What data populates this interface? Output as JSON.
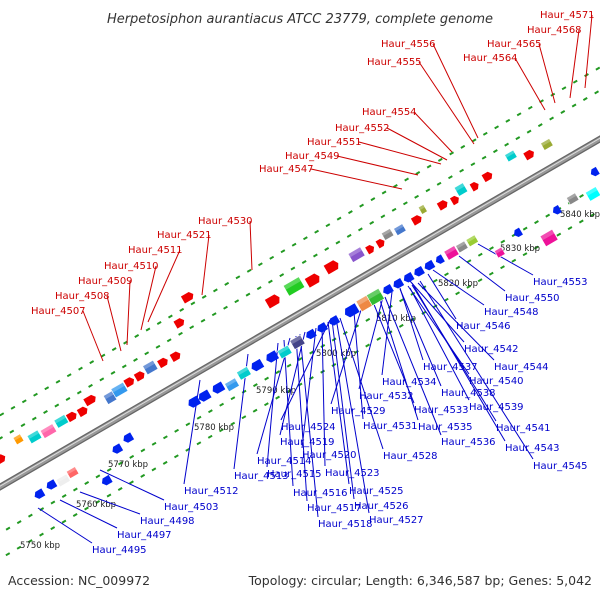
{
  "title": "Herpetosiphon aurantiacus ATCC 23779, complete genome",
  "footer": {
    "accession": "Accession: NC_009972",
    "summary": "Topology: circular; Length: 6,346,587 bp; Genes: 5,042"
  },
  "colors": {
    "top_strand_label": "#cc0000",
    "bottom_strand_label": "#0000cc",
    "backbone": "#999999",
    "tick_dot": "#229922"
  },
  "ticks": [
    "5750 kbp",
    "5760 kbp",
    "5770 kbp",
    "5780 kbp",
    "5790 kbp",
    "5800 kbp",
    "5810 kbp",
    "5820 kbp",
    "5830 kbp",
    "5840 kbp"
  ],
  "top_labels": [
    "Haur_4571",
    "Haur_4568",
    "Haur_4565",
    "Haur_4564",
    "Haur_4556",
    "Haur_4555",
    "Haur_4554",
    "Haur_4552",
    "Haur_4551",
    "Haur_4549",
    "Haur_4547",
    "Haur_4530",
    "Haur_4521",
    "Haur_4511",
    "Haur_4510",
    "Haur_4509",
    "Haur_4508",
    "Haur_4507"
  ],
  "bottom_labels": [
    "Haur_4553",
    "Haur_4550",
    "Haur_4548",
    "Haur_4546",
    "Haur_4542",
    "Haur_4544",
    "Haur_4537",
    "Haur_4540",
    "Haur_4534",
    "Haur_4538",
    "Haur_4532",
    "Haur_4539",
    "Haur_4533",
    "Haur_4529",
    "Haur_4541",
    "Haur_4531",
    "Haur_4535",
    "Haur_4524",
    "Haur_4543",
    "Haur_4536",
    "Haur_4519",
    "Haur_4528",
    "Haur_4520",
    "Haur_4545",
    "Haur_4514",
    "Haur_4523",
    "Haur_4513",
    "Haur_4515",
    "Haur_4512",
    "Haur_4525",
    "Haur_4516",
    "Haur_4503",
    "Haur_4526",
    "Haur_4517",
    "Haur_4498",
    "Haur_4527",
    "Haur_4518",
    "Haur_4497",
    "Haur_4495"
  ]
}
